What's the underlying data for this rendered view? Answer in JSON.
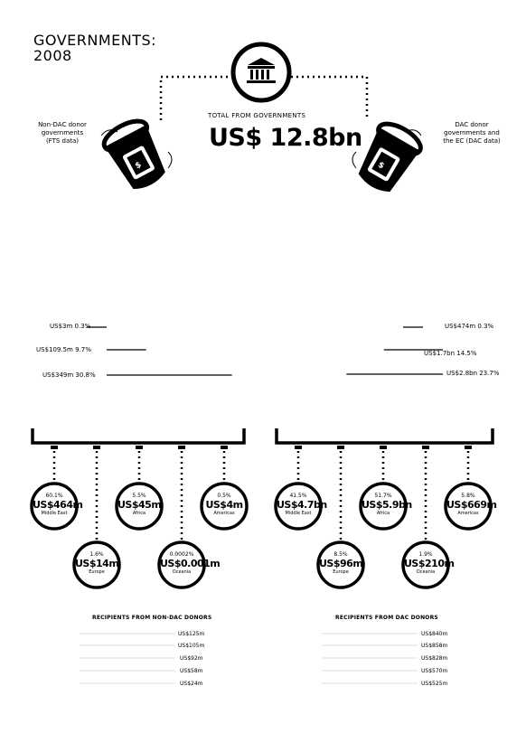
{
  "title_line1": "GOVERNMENTS:",
  "title_line2": "2008",
  "total_label": "TOTAL FROM GOVERNMENTS",
  "total_value": "US$ 12.8bn",
  "non_dac_label": [
    "Non-DAC donor",
    "governments",
    "(FTS data)"
  ],
  "dac_label": [
    "DAC donor",
    "governments and",
    "the EC (DAC data)"
  ],
  "non_dac_bars": [
    {
      "label": "US$3m  0.3%",
      "share": 0.003
    },
    {
      "label": "US$109.5m  9.7%",
      "share": 0.097
    },
    {
      "label": "US$349m  30.8%",
      "share": 0.308
    }
  ],
  "dac_bars": [
    {
      "label": "US$474m  0.3%",
      "share": 0.003
    },
    {
      "label": "US$1.7bn  14.5%",
      "share": 0.145
    },
    {
      "label": "US$2.8bn  23.7%",
      "share": 0.237
    }
  ],
  "non_dac_regions": [
    {
      "pct": "60.1%",
      "value": "US$464m",
      "name": "Middle East"
    },
    {
      "pct": "1.6%",
      "value": "US$14m",
      "name": "Europe"
    },
    {
      "pct": "5.5%",
      "value": "US$45m",
      "name": "Africa"
    },
    {
      "pct": "0.0002%",
      "value": "US$0.001m",
      "name": "Oceania"
    },
    {
      "pct": "0.5%",
      "value": "US$4m",
      "name": "Americas"
    }
  ],
  "dac_regions": [
    {
      "pct": "41.5%",
      "value": "US$4.7bn",
      "name": "Middle East"
    },
    {
      "pct": "8.5%",
      "value": "US$96m",
      "name": "Europe"
    },
    {
      "pct": "51.7%",
      "value": "US$5.9bn",
      "name": "Africa"
    },
    {
      "pct": "1.9%",
      "value": "US$210m",
      "name": "Oceania"
    },
    {
      "pct": "5.8%",
      "value": "US$669m",
      "name": "Americas"
    }
  ],
  "non_dac_recipients_title": "RECIPIENTS FROM NON-DAC DONORS",
  "non_dac_recipients": [
    "US$125m",
    "US$105m",
    "US$92m",
    "US$58m",
    "US$24m"
  ],
  "dac_recipients_title": "RECIPIENTS FROM DAC DONORS",
  "dac_recipients": [
    "US$840m",
    "US$858m",
    "US$828m",
    "US$570m",
    "US$525m"
  ]
}
